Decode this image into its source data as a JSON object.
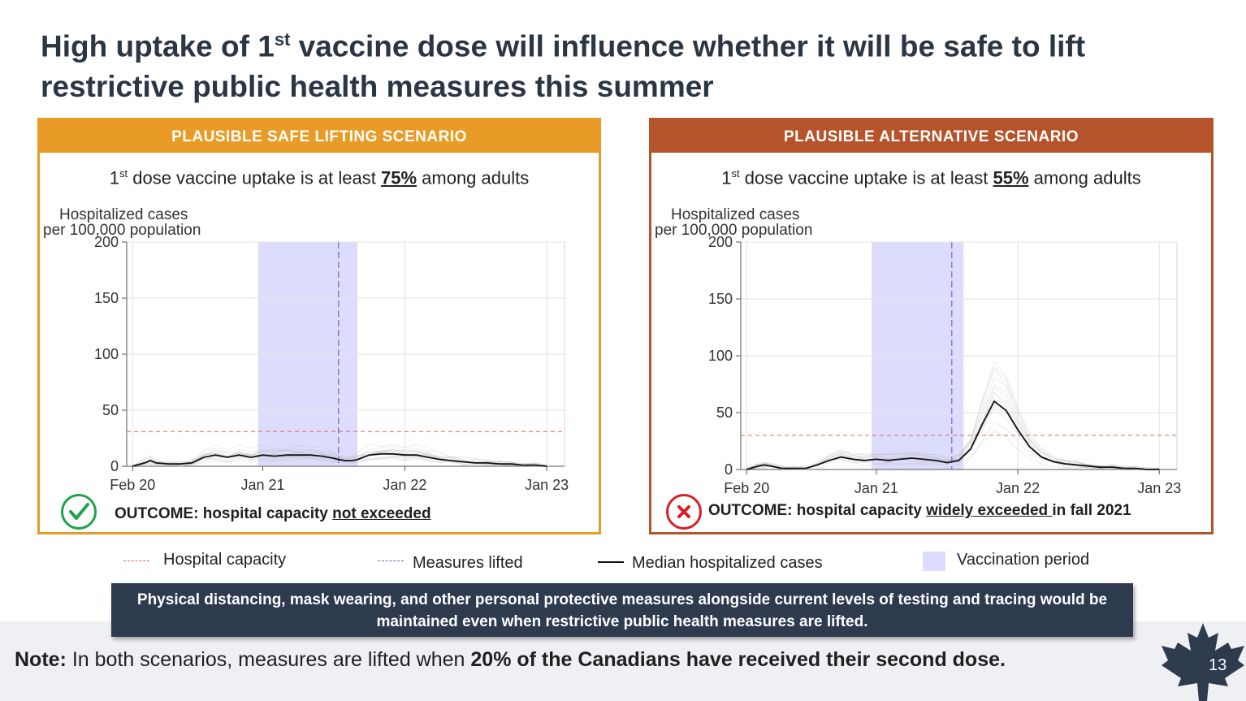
{
  "slide": {
    "title_part1": "High uptake of 1",
    "title_sup": "st",
    "title_part2": " vaccine dose will influence whether it will be safe to lift restrictive public health measures this summer",
    "page_number": "13"
  },
  "panels": [
    {
      "header": "PLAUSIBLE SAFE LIFTING SCENARIO",
      "uptake_pre": "1",
      "uptake_sup": "st",
      "uptake_mid": " dose vaccine uptake is at least ",
      "uptake_pct": "75%",
      "uptake_post": " among adults",
      "outcome_label": "OUTCOME: hospital capacity ",
      "outcome_highlight": "not exceeded",
      "outcome_tail": "",
      "outcome_icon": "check-icon"
    },
    {
      "header": "PLAUSIBLE ALTERNATIVE SCENARIO",
      "uptake_pre": "1",
      "uptake_sup": "st",
      "uptake_mid": " dose vaccine uptake is at least ",
      "uptake_pct": "55%",
      "uptake_post": " among adults",
      "outcome_label": "OUTCOME: hospital capacity ",
      "outcome_highlight": "widely exceeded ",
      "outcome_tail": "in fall 2021",
      "outcome_icon": "cross-icon"
    }
  ],
  "legend": {
    "hospital_capacity": "Hospital capacity",
    "measures_lifted": "Measures lifted",
    "median": "Median hospitalized cases",
    "vaccination": "Vaccination period"
  },
  "callout": "Physical distancing, mask wearing, and other personal protective measures alongside current levels of testing and tracing would be maintained even when restrictive public health measures are lifted.",
  "note": {
    "label": "Note:",
    "text": " In both scenarios, measures are lifted when ",
    "bold": "20% of the Canadians have received their second dose."
  },
  "colors": {
    "safe": "#e89b26",
    "alternative": "#b5532a",
    "capacity_line": "#e06666",
    "lifted_line": "#6a6ad8",
    "vaccination_band": "#dcdcfc",
    "check": "#1ea34a",
    "cross": "#d81e27"
  },
  "chart_data": [
    {
      "type": "line",
      "title": "",
      "ylabel": "Hospitalized cases per 100,000 population",
      "ylabel_line1": "Hospitalized cases",
      "ylabel_line2": "per 100,000 population",
      "ylim": [
        0,
        200
      ],
      "yticks": [
        0,
        50,
        100,
        150,
        200
      ],
      "xticks": [
        "Feb 20",
        "Jan 21",
        "Jan 22",
        "Jan 23"
      ],
      "xtick_months": [
        0,
        11,
        23,
        35
      ],
      "xlim_months": [
        -0.5,
        36.5
      ],
      "hospital_capacity": 31,
      "vaccination_period_months": [
        10.6,
        19.0
      ],
      "measures_lifted_month": 17.4,
      "grid": true,
      "series": [
        {
          "name": "Median hospitalized cases",
          "x_months": [
            0,
            1,
            1.5,
            2,
            3,
            4,
            5,
            6,
            7,
            8,
            9,
            10,
            11,
            12,
            13,
            14,
            15,
            16,
            17,
            17.4,
            18,
            18.5,
            19,
            20,
            21,
            22,
            23,
            24,
            25,
            26,
            27,
            28,
            29,
            30,
            31,
            32,
            33,
            34,
            35
          ],
          "values": [
            0,
            3,
            5,
            3,
            2,
            2,
            3,
            8,
            10,
            8,
            10,
            8,
            10,
            9,
            10,
            10,
            10,
            9,
            7,
            6,
            5,
            5,
            6,
            10,
            11,
            11,
            10,
            10,
            8,
            6,
            5,
            4,
            3,
            3,
            2,
            2,
            1,
            1,
            0
          ]
        }
      ]
    },
    {
      "type": "line",
      "title": "",
      "ylabel": "Hospitalized cases per 100,000 population",
      "ylabel_line1": "Hospitalized cases",
      "ylabel_line2": "per 100,000 population",
      "ylim": [
        0,
        200
      ],
      "yticks": [
        0,
        50,
        100,
        150,
        200
      ],
      "xticks": [
        "Feb 20",
        "Jan 21",
        "Jan 22",
        "Jan 23"
      ],
      "xtick_months": [
        0,
        11,
        23,
        35
      ],
      "xlim_months": [
        -0.5,
        36.5
      ],
      "hospital_capacity": 30,
      "vaccination_period_months": [
        10.6,
        18.4
      ],
      "measures_lifted_month": 17.4,
      "grid": true,
      "series": [
        {
          "name": "Median hospitalized cases",
          "x_months": [
            0,
            1,
            1.5,
            2,
            3,
            4,
            5,
            6,
            7,
            8,
            9,
            10,
            11,
            12,
            13,
            14,
            15,
            16,
            17,
            18,
            19,
            20,
            21,
            22,
            23,
            24,
            25,
            26,
            27,
            28,
            29,
            30,
            31,
            32,
            33,
            34,
            35
          ],
          "values": [
            0,
            3,
            4,
            3,
            1,
            1,
            1,
            4,
            8,
            11,
            9,
            8,
            9,
            8,
            9,
            10,
            9,
            8,
            6,
            8,
            18,
            40,
            60,
            52,
            35,
            20,
            11,
            7,
            5,
            4,
            3,
            2,
            2,
            1,
            1,
            0,
            0
          ]
        }
      ]
    }
  ]
}
